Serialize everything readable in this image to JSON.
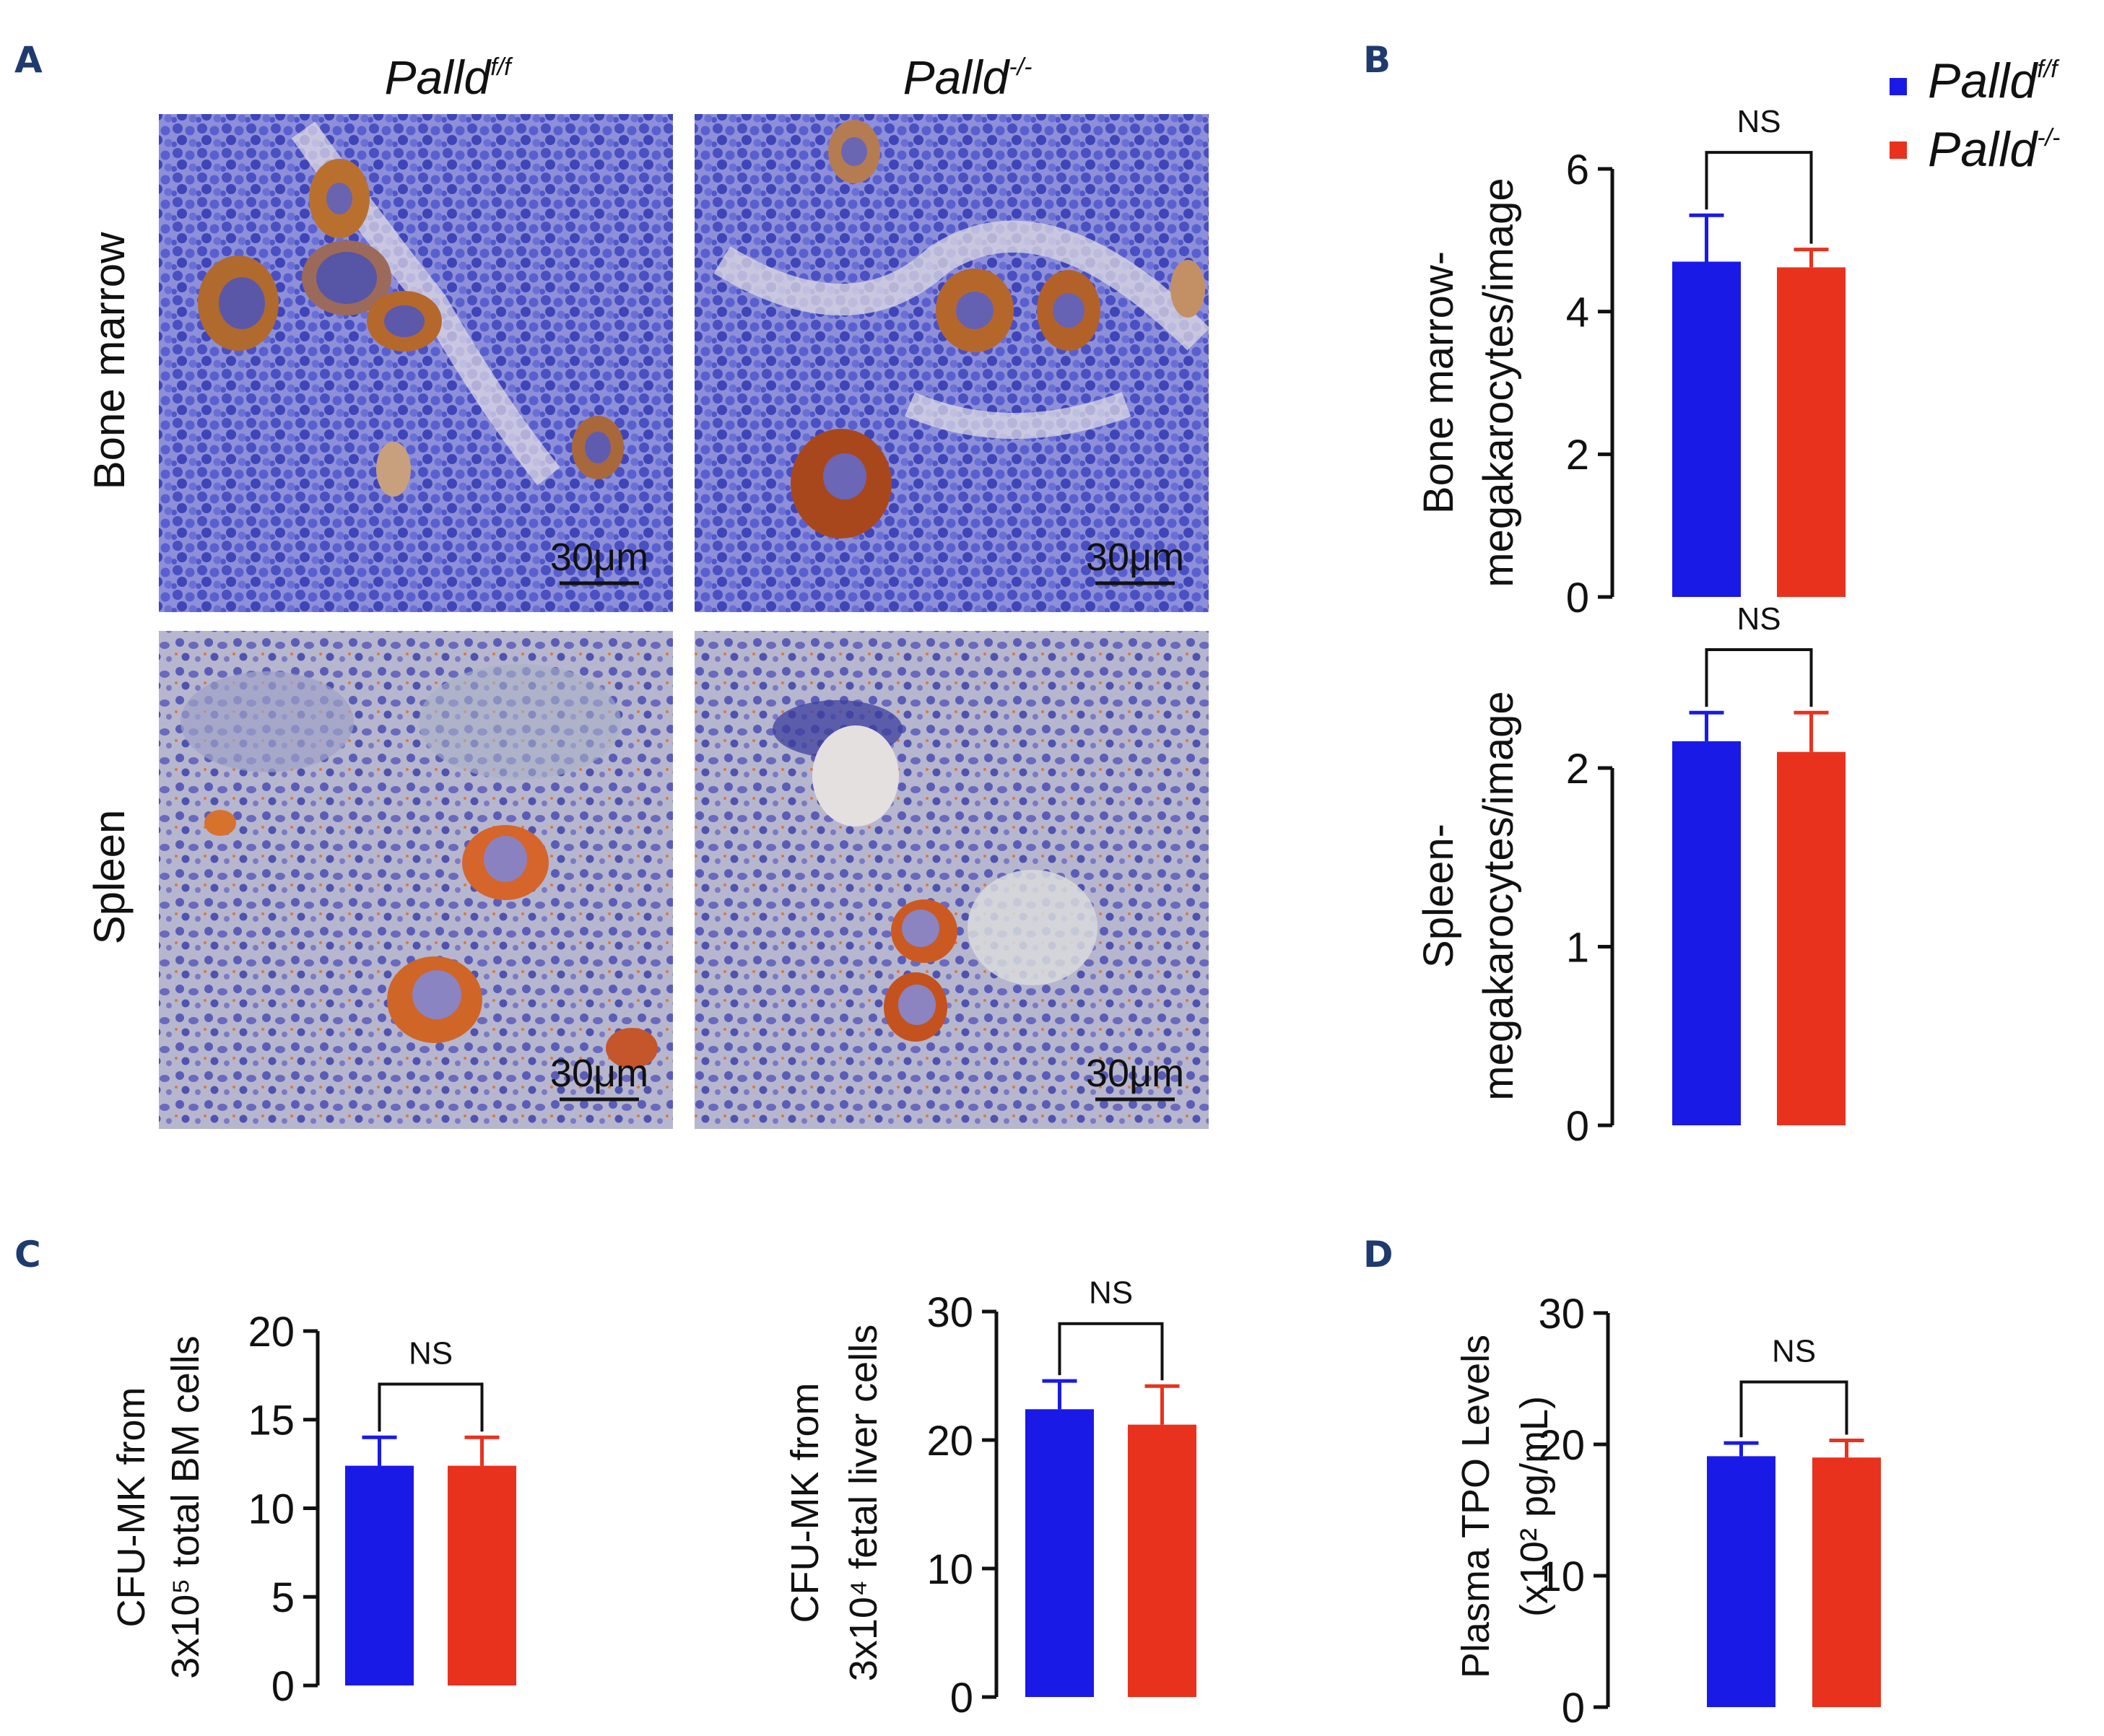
{
  "colors": {
    "palld_ff": "#1a1ae6",
    "palld_ko": "#e8321e",
    "axis": "#111111",
    "panel_label": "#1f3a6e"
  },
  "panel_labels": {
    "A": "A",
    "B": "B",
    "C": "C",
    "D": "D"
  },
  "panel_a": {
    "col_headers": [
      {
        "gene": "Palld",
        "sup": "f/f"
      },
      {
        "gene": "Palld",
        "sup": "-/-"
      }
    ],
    "row_labels": [
      "Bone marrow",
      "Spleen"
    ],
    "scale_bar_label": "30μm"
  },
  "legend": {
    "entries": [
      {
        "gene": "Palld",
        "sup": "f/f",
        "color_key": "palld_ff"
      },
      {
        "gene": "Palld",
        "sup": "-/-",
        "color_key": "palld_ko"
      }
    ]
  },
  "chart_data": [
    {
      "id": "bm",
      "type": "bar",
      "ylabel_lines": [
        "Bone marrow-",
        "megakarocytes/image"
      ],
      "ylim": [
        0,
        6
      ],
      "yticks": [
        0,
        2,
        4,
        6
      ],
      "categories": [
        "Palld f/f",
        "Palld -/-"
      ],
      "values": [
        4.7,
        4.62
      ],
      "errors": [
        0.65,
        0.25
      ],
      "significance": "NS"
    },
    {
      "id": "spleen",
      "type": "bar",
      "ylabel_lines": [
        "Spleen-",
        "megakarocytes/image"
      ],
      "ylim": [
        0,
        2.4
      ],
      "yticks": [
        0,
        1,
        2
      ],
      "categories": [
        "Palld f/f",
        "Palld -/-"
      ],
      "values": [
        2.15,
        2.09
      ],
      "errors": [
        0.16,
        0.22
      ],
      "significance": "NS"
    },
    {
      "id": "c1",
      "type": "bar",
      "ylabel_lines": [
        "CFU-MK from",
        "3x10⁵ total BM cells"
      ],
      "ylim": [
        0,
        20
      ],
      "yticks": [
        0,
        5,
        10,
        15,
        20
      ],
      "categories": [
        "Palld f/f",
        "Palld -/-"
      ],
      "values": [
        12.4,
        12.4
      ],
      "errors": [
        1.6,
        1.6
      ],
      "significance": "NS"
    },
    {
      "id": "c2",
      "type": "bar",
      "ylabel_lines": [
        "CFU-MK from",
        "3x10⁴ fetal liver cells"
      ],
      "ylim": [
        0,
        30
      ],
      "yticks": [
        0,
        10,
        20,
        30
      ],
      "categories": [
        "Palld f/f",
        "Palld -/-"
      ],
      "values": [
        22.4,
        21.2
      ],
      "errors": [
        2.2,
        3.0
      ],
      "significance": "NS"
    },
    {
      "id": "d",
      "type": "bar",
      "ylabel_lines": [
        "Plasma TPO Levels",
        "(x10² pg/mL)"
      ],
      "ylim": [
        0,
        30
      ],
      "yticks": [
        0,
        10,
        20,
        30
      ],
      "categories": [
        "Palld f/f",
        "Palld -/-"
      ],
      "values": [
        19.1,
        19.0
      ],
      "errors": [
        1.0,
        1.3
      ],
      "significance": "NS"
    }
  ]
}
